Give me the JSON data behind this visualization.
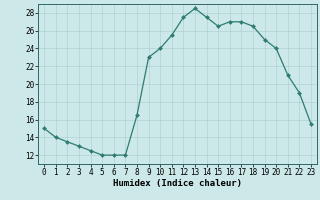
{
  "x": [
    0,
    1,
    2,
    3,
    4,
    5,
    6,
    7,
    8,
    9,
    10,
    11,
    12,
    13,
    14,
    15,
    16,
    17,
    18,
    19,
    20,
    21,
    22,
    23
  ],
  "y": [
    15,
    14,
    13.5,
    13,
    12.5,
    12,
    12,
    12,
    16.5,
    23,
    24,
    25.5,
    27.5,
    28.5,
    27.5,
    26.5,
    27,
    27,
    26.5,
    25,
    24,
    21,
    19,
    15.5
  ],
  "xlabel": "Humidex (Indice chaleur)",
  "ylim": [
    11,
    29
  ],
  "xlim": [
    -0.5,
    23.5
  ],
  "yticks": [
    12,
    14,
    16,
    18,
    20,
    22,
    24,
    26,
    28
  ],
  "xtick_labels": [
    "0",
    "1",
    "2",
    "3",
    "4",
    "5",
    "6",
    "7",
    "8",
    "9",
    "10",
    "11",
    "12",
    "13",
    "14",
    "15",
    "16",
    "17",
    "18",
    "19",
    "20",
    "21",
    "22",
    "23"
  ],
  "line_color": "#2e7d6e",
  "marker_color": "#2e7d6e",
  "bg_color": "#cce8e8",
  "grid_color": "#aacccc",
  "axis_color": "#336666",
  "tick_fontsize": 5.5,
  "xlabel_fontsize": 6.5
}
